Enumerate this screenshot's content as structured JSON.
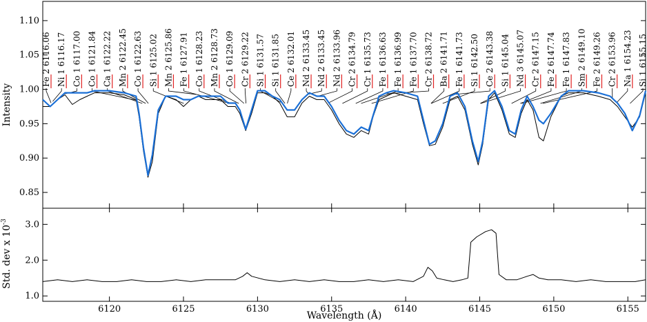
{
  "chart_data": [
    {
      "type": "line",
      "title": "",
      "xlabel": "",
      "ylabel": "Intensity",
      "xlim": [
        6115.5,
        6156.2
      ],
      "ylim": [
        0.827,
        1.128
      ],
      "yticks": [
        0.85,
        0.9,
        0.95,
        1.0,
        1.05,
        1.1
      ],
      "ytick_labels": [
        "0.85",
        "0.90",
        "0.95",
        "1.00",
        "1.05",
        "1.10"
      ],
      "series": [
        {
          "color": "#000000",
          "x": [
            6115.5,
            6116.0,
            6116.5,
            6117.0,
            6117.5,
            6118.0,
            6118.5,
            6119.0,
            6120.0,
            6121.0,
            6121.8,
            6122.0,
            6122.3,
            6122.6,
            6122.9,
            6123.3,
            6123.8,
            6124.5,
            6125.0,
            6125.5,
            6126.0,
            6126.5,
            6127.0,
            6127.5,
            6128.0,
            6128.5,
            6128.8,
            6129.2,
            6129.6,
            6130.0,
            6130.5,
            6131.0,
            6131.5,
            6132.0,
            6132.5,
            6133.0,
            6133.5,
            6134.0,
            6134.5,
            6135.0,
            6135.5,
            6136.0,
            6136.5,
            6137.0,
            6137.5,
            6137.8,
            6138.2,
            6138.7,
            6139.2,
            6140.0,
            6140.8,
            6141.2,
            6141.6,
            6142.0,
            6142.5,
            6143.0,
            6143.5,
            6144.0,
            6144.5,
            6144.9,
            6145.2,
            6145.6,
            6146.0,
            6146.5,
            6147.0,
            6147.4,
            6147.8,
            6148.2,
            6148.6,
            6149.0,
            6149.3,
            6149.8,
            6150.5,
            6151.0,
            6152.0,
            6153.0,
            6153.8,
            6154.3,
            6154.8,
            6155.3,
            6155.8,
            6156.2
          ],
          "y": [
            0.975,
            0.975,
            0.985,
            0.992,
            0.978,
            0.985,
            0.99,
            0.995,
            0.995,
            0.992,
            0.985,
            0.96,
            0.91,
            0.872,
            0.895,
            0.965,
            0.99,
            0.985,
            0.975,
            0.985,
            0.99,
            0.985,
            0.985,
            0.985,
            0.975,
            0.975,
            0.965,
            0.94,
            0.965,
            0.995,
            0.995,
            0.99,
            0.98,
            0.96,
            0.96,
            0.98,
            0.99,
            0.985,
            0.985,
            0.97,
            0.95,
            0.935,
            0.93,
            0.94,
            0.935,
            0.96,
            0.985,
            0.99,
            0.995,
            0.99,
            0.985,
            0.95,
            0.918,
            0.92,
            0.945,
            0.985,
            0.99,
            0.97,
            0.92,
            0.89,
            0.92,
            0.985,
            0.995,
            0.97,
            0.935,
            0.93,
            0.965,
            0.985,
            0.97,
            0.93,
            0.925,
            0.96,
            0.99,
            0.995,
            0.995,
            0.99,
            0.985,
            0.975,
            0.96,
            0.945,
            0.96,
            0.995
          ]
        },
        {
          "color": "#1a6fd6",
          "x": [
            6115.5,
            6116.0,
            6116.5,
            6117.0,
            6117.5,
            6118.0,
            6118.5,
            6119.0,
            6120.0,
            6121.0,
            6121.8,
            6122.0,
            6122.3,
            6122.6,
            6122.9,
            6123.3,
            6123.8,
            6124.5,
            6125.0,
            6125.5,
            6126.0,
            6126.5,
            6127.0,
            6127.5,
            6128.0,
            6128.5,
            6128.8,
            6129.2,
            6129.6,
            6130.0,
            6130.5,
            6131.0,
            6131.5,
            6132.0,
            6132.5,
            6133.0,
            6133.5,
            6134.0,
            6134.5,
            6135.0,
            6135.5,
            6136.0,
            6136.5,
            6137.0,
            6137.5,
            6137.8,
            6138.2,
            6138.7,
            6139.2,
            6140.0,
            6140.8,
            6141.2,
            6141.6,
            6142.0,
            6142.5,
            6143.0,
            6143.5,
            6144.0,
            6144.5,
            6144.9,
            6145.2,
            6145.6,
            6146.0,
            6146.5,
            6147.0,
            6147.4,
            6147.8,
            6148.2,
            6148.6,
            6149.0,
            6149.3,
            6149.8,
            6150.5,
            6151.0,
            6152.0,
            6153.0,
            6153.8,
            6154.3,
            6154.8,
            6155.3,
            6155.8,
            6156.2
          ],
          "y": [
            0.985,
            0.975,
            0.985,
            0.995,
            0.995,
            0.995,
            0.995,
            0.998,
            0.998,
            0.995,
            0.99,
            0.965,
            0.915,
            0.875,
            0.905,
            0.97,
            0.99,
            0.99,
            0.985,
            0.985,
            0.99,
            0.99,
            0.99,
            0.99,
            0.98,
            0.98,
            0.97,
            0.942,
            0.97,
            0.998,
            0.998,
            0.99,
            0.985,
            0.97,
            0.97,
            0.985,
            0.995,
            0.99,
            0.99,
            0.975,
            0.955,
            0.94,
            0.935,
            0.945,
            0.94,
            0.962,
            0.99,
            0.995,
            0.998,
            0.995,
            0.99,
            0.955,
            0.92,
            0.925,
            0.95,
            0.99,
            0.995,
            0.975,
            0.925,
            0.895,
            0.925,
            0.99,
            0.998,
            0.975,
            0.94,
            0.935,
            0.97,
            0.99,
            0.975,
            0.955,
            0.95,
            0.965,
            0.99,
            0.998,
            0.998,
            0.995,
            0.99,
            0.98,
            0.965,
            0.94,
            0.962,
            0.998
          ]
        }
      ],
      "line_ids": [
        {
          "el": "Fe 2",
          "wl": "6116.06",
          "x": 6116.06
        },
        {
          "el": "Ni 1",
          "wl": "6116.17",
          "x": 6116.17
        },
        {
          "el": "Co 1",
          "wl": "6117.00",
          "x": 6117.0
        },
        {
          "el": "Co 1",
          "wl": "6121.84",
          "x": 6121.84
        },
        {
          "el": "Ca 1",
          "wl": "6122.22",
          "x": 6122.22
        },
        {
          "el": "Mn 2",
          "wl": "6122.45",
          "x": 6122.45
        },
        {
          "el": "Co 1",
          "wl": "6122.63",
          "x": 6122.63
        },
        {
          "el": "Si 1",
          "wl": "6125.02",
          "x": 6125.02
        },
        {
          "el": "Mn 2",
          "wl": "6125.86",
          "x": 6125.86
        },
        {
          "el": "Fe 1",
          "wl": "6127.91",
          "x": 6127.91
        },
        {
          "el": "Co 1",
          "wl": "6128.23",
          "x": 6128.23
        },
        {
          "el": "Mn 2",
          "wl": "6128.73",
          "x": 6128.73
        },
        {
          "el": "Co 1",
          "wl": "6129.09",
          "x": 6129.09
        },
        {
          "el": "Cr 2",
          "wl": "6129.22",
          "x": 6129.22
        },
        {
          "el": "Si 1",
          "wl": "6131.57",
          "x": 6131.57
        },
        {
          "el": "Si 1",
          "wl": "6131.85",
          "x": 6131.85
        },
        {
          "el": "Ce 2",
          "wl": "6132.01",
          "x": 6132.01
        },
        {
          "el": "Nd 2",
          "wl": "6133.45",
          "x": 6133.45
        },
        {
          "el": "Nd 2",
          "wl": "6133.45",
          "x": 6133.45
        },
        {
          "el": "Nd 2",
          "wl": "6133.96",
          "x": 6133.96
        },
        {
          "el": "Cr 2",
          "wl": "6134.79",
          "x": 6134.79
        },
        {
          "el": "Cr 1",
          "wl": "6135.73",
          "x": 6135.73
        },
        {
          "el": "Fe 1",
          "wl": "6136.63",
          "x": 6136.63
        },
        {
          "el": "Fe 1",
          "wl": "6136.99",
          "x": 6136.99
        },
        {
          "el": "Fe 1",
          "wl": "6137.70",
          "x": 6137.7
        },
        {
          "el": "Cr 2",
          "wl": "6138.72",
          "x": 6138.72
        },
        {
          "el": "Ba 2",
          "wl": "6141.71",
          "x": 6141.71
        },
        {
          "el": "Fe 1",
          "wl": "6141.73",
          "x": 6141.73
        },
        {
          "el": "Si 1",
          "wl": "6142.50",
          "x": 6142.5
        },
        {
          "el": "Ce 2",
          "wl": "6143.38",
          "x": 6143.38
        },
        {
          "el": "Si 1",
          "wl": "6145.04",
          "x": 6145.04
        },
        {
          "el": "Nd 3",
          "wl": "6145.07",
          "x": 6145.07
        },
        {
          "el": "Cr 2",
          "wl": "6147.15",
          "x": 6147.15
        },
        {
          "el": "Fe 2",
          "wl": "6147.74",
          "x": 6147.74
        },
        {
          "el": "Fe 1",
          "wl": "6147.83",
          "x": 6147.83
        },
        {
          "el": "Sm 2",
          "wl": "6149.10",
          "x": 6149.1
        },
        {
          "el": "Fe 2",
          "wl": "6149.26",
          "x": 6149.26
        },
        {
          "el": "Cr 2",
          "wl": "6153.96",
          "x": 6153.96
        },
        {
          "el": "Na 1",
          "wl": "6154.23",
          "x": 6154.23
        },
        {
          "el": "Si 1",
          "wl": "6155.15",
          "x": 6155.15
        }
      ]
    },
    {
      "type": "line",
      "title": "",
      "xlabel": "Wavelength (Å)",
      "ylabel": "Std. dev x 10",
      "ylabel_exponent": "-3",
      "xlim": [
        6115.5,
        6156.2
      ],
      "ylim": [
        0.85,
        3.45
      ],
      "xticks": [
        6120,
        6125,
        6130,
        6135,
        6140,
        6145,
        6150,
        6155
      ],
      "xtick_labels": [
        "6120",
        "6125",
        "6130",
        "6135",
        "6140",
        "6145",
        "6150",
        "6155"
      ],
      "yticks": [
        1.0,
        2.0,
        3.0
      ],
      "ytick_labels": [
        "1.0",
        "2.0",
        "3.0"
      ],
      "series": [
        {
          "color": "#000000",
          "x": [
            6115.5,
            6116.5,
            6117.5,
            6118.5,
            6119.5,
            6120.5,
            6121.5,
            6122.5,
            6123.5,
            6124.5,
            6125.5,
            6126.5,
            6127.5,
            6128.5,
            6129.0,
            6129.3,
            6129.6,
            6130.5,
            6131.5,
            6132.5,
            6133.5,
            6134.5,
            6135.5,
            6136.5,
            6137.5,
            6138.5,
            6139.5,
            6140.5,
            6141.2,
            6141.5,
            6141.8,
            6142.1,
            6142.6,
            6143.2,
            6143.8,
            6144.2,
            6144.4,
            6144.8,
            6145.4,
            6145.8,
            6146.1,
            6146.3,
            6146.8,
            6147.5,
            6148.2,
            6148.6,
            6149.0,
            6149.6,
            6150.5,
            6151.5,
            6152.5,
            6153.5,
            6154.5,
            6155.5,
            6156.2
          ],
          "y": [
            1.4,
            1.45,
            1.4,
            1.45,
            1.4,
            1.4,
            1.45,
            1.4,
            1.4,
            1.45,
            1.4,
            1.45,
            1.45,
            1.45,
            1.55,
            1.65,
            1.55,
            1.45,
            1.4,
            1.45,
            1.4,
            1.45,
            1.4,
            1.4,
            1.45,
            1.4,
            1.45,
            1.4,
            1.55,
            1.8,
            1.7,
            1.5,
            1.45,
            1.4,
            1.45,
            1.5,
            2.5,
            2.65,
            2.8,
            2.85,
            2.75,
            1.6,
            1.45,
            1.45,
            1.55,
            1.6,
            1.5,
            1.45,
            1.45,
            1.4,
            1.45,
            1.4,
            1.4,
            1.4,
            1.45
          ]
        }
      ]
    }
  ]
}
